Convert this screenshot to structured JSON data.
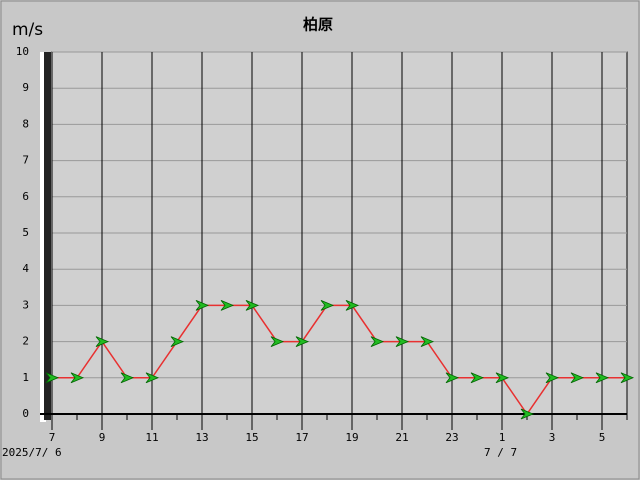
{
  "chart_data": {
    "type": "line",
    "title": "柏原",
    "y_label": "m/s",
    "categories": [
      "7",
      null,
      "9",
      null,
      "11",
      null,
      "13",
      null,
      "15",
      null,
      "17",
      null,
      "19",
      null,
      "21",
      null,
      "23",
      null,
      "1",
      null,
      "3",
      null,
      "5",
      null
    ],
    "series": [
      {
        "color": "#e83030",
        "marker_color": "#22bb22",
        "values": [
          1,
          1,
          2,
          1,
          1,
          2,
          3,
          3,
          3,
          2,
          2,
          3,
          3,
          2,
          2,
          2,
          1,
          1,
          1,
          0,
          1,
          1,
          1,
          1
        ]
      }
    ],
    "ylim": [
      0,
      10
    ],
    "yticks": [
      0,
      1,
      2,
      3,
      4,
      5,
      6,
      7,
      8,
      9,
      10
    ],
    "grid": true,
    "date_labels": [
      "2025/7/ 6",
      "7 / 7"
    ]
  }
}
